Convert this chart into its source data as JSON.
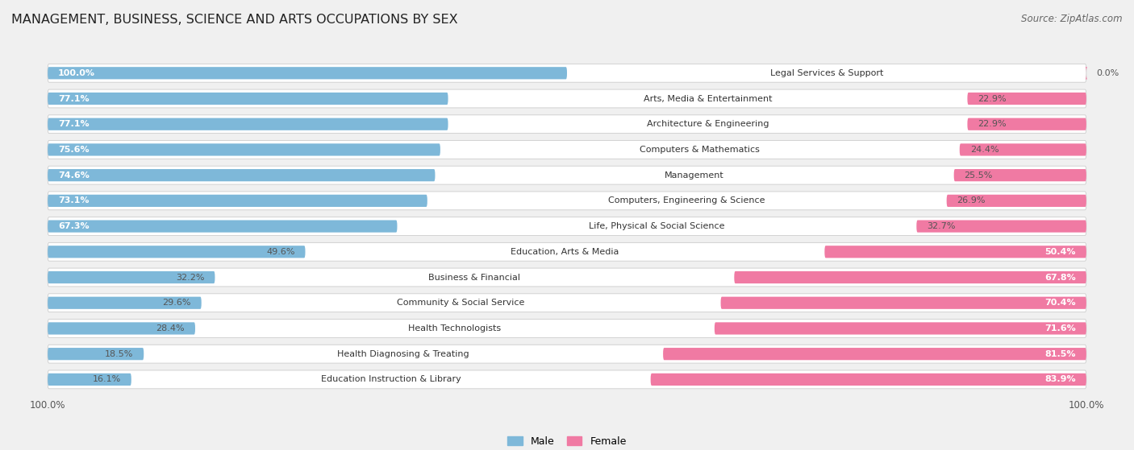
{
  "title": "MANAGEMENT, BUSINESS, SCIENCE AND ARTS OCCUPATIONS BY SEX",
  "source": "Source: ZipAtlas.com",
  "categories": [
    "Legal Services & Support",
    "Arts, Media & Entertainment",
    "Architecture & Engineering",
    "Computers & Mathematics",
    "Management",
    "Computers, Engineering & Science",
    "Life, Physical & Social Science",
    "Education, Arts & Media",
    "Business & Financial",
    "Community & Social Service",
    "Health Technologists",
    "Health Diagnosing & Treating",
    "Education Instruction & Library"
  ],
  "male_pct": [
    100.0,
    77.1,
    77.1,
    75.6,
    74.6,
    73.1,
    67.3,
    49.6,
    32.2,
    29.6,
    28.4,
    18.5,
    16.1
  ],
  "female_pct": [
    0.0,
    22.9,
    22.9,
    24.4,
    25.5,
    26.9,
    32.7,
    50.4,
    67.8,
    70.4,
    71.6,
    81.5,
    83.9
  ],
  "male_color": "#7eb8d9",
  "female_color": "#f07aa3",
  "row_bg_color": "#ffffff",
  "page_bg_color": "#f0f0f0",
  "bar_bg_color": "#dcdcdc",
  "row_border_color": "#cccccc",
  "title_fontsize": 11.5,
  "source_fontsize": 8.5,
  "label_fontsize": 8.0,
  "tick_fontsize": 8.5
}
